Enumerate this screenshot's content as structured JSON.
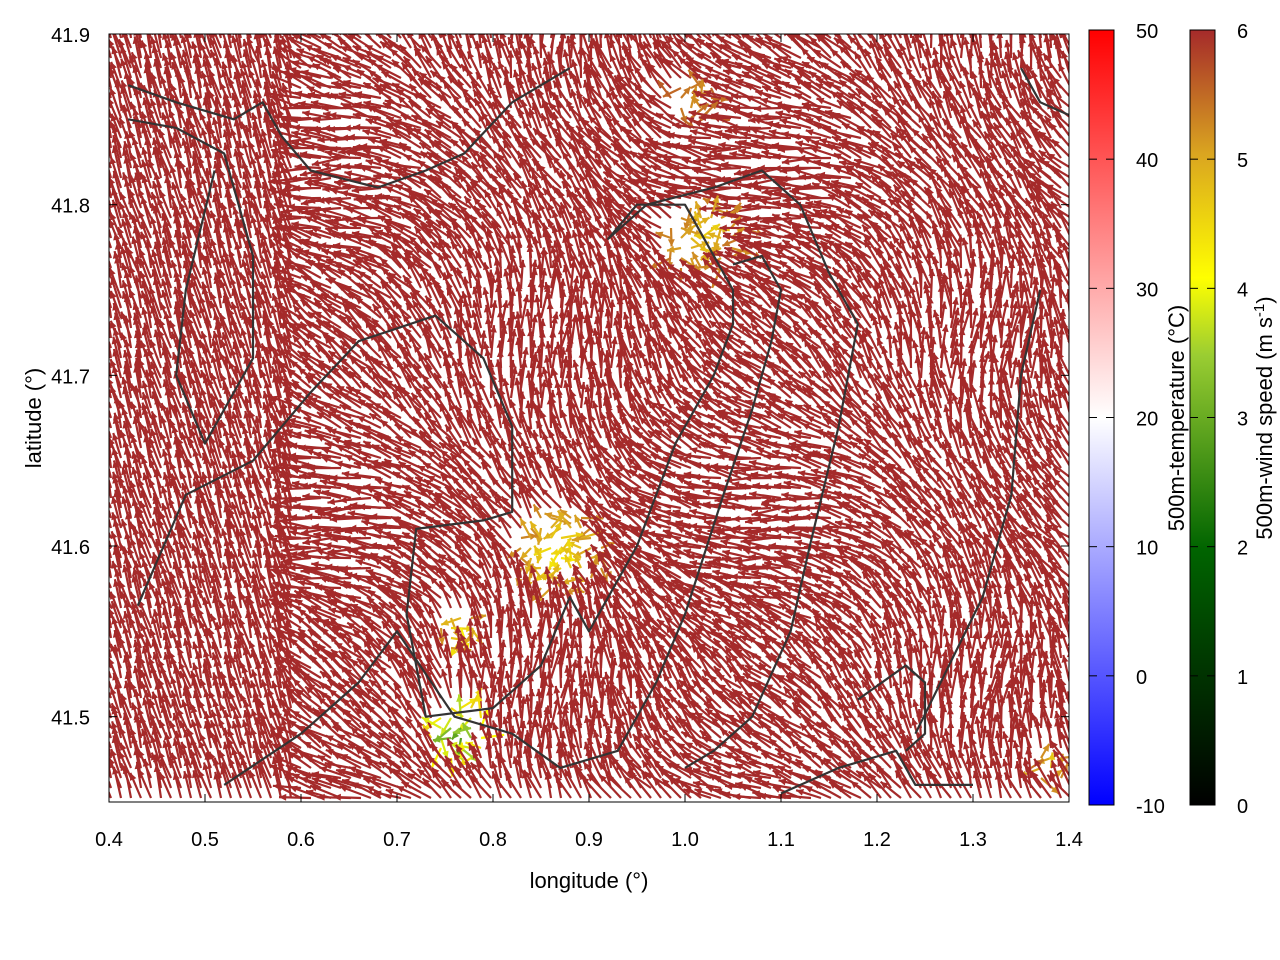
{
  "chart_data": {
    "type": "vector-field",
    "xlabel": "longitude (°)",
    "ylabel": "latitude (°)",
    "xlim": [
      0.4,
      1.4
    ],
    "ylim": [
      41.45,
      41.9
    ],
    "xticks": [
      "0.4",
      "0.5",
      "0.6",
      "0.7",
      "0.8",
      "0.9",
      "1.0",
      "1.1",
      "1.2",
      "1.3",
      "1.4"
    ],
    "xtick_values": [
      0.4,
      0.5,
      0.6,
      0.7,
      0.8,
      0.9,
      1.0,
      1.1,
      1.2,
      1.3,
      1.4
    ],
    "yticks": [
      "41.5",
      "41.6",
      "41.7",
      "41.8",
      "41.9"
    ],
    "ytick_values": [
      41.5,
      41.6,
      41.7,
      41.8,
      41.9
    ],
    "grid": false,
    "arrow_color_dominant": "#a52a2a",
    "contour_color": "#333333",
    "temperature_colorbar": {
      "label": "500m-temperature (°C)",
      "range": [
        -10,
        50
      ],
      "ticks": [
        "-10",
        "0",
        "10",
        "20",
        "30",
        "40",
        "50"
      ],
      "tick_values": [
        -10,
        0,
        10,
        20,
        30,
        40,
        50
      ],
      "colors": [
        "#0000ff",
        "#ffffff",
        "#ff0000"
      ]
    },
    "wind_colorbar": {
      "label": "500m-wind speed (m s",
      "label_sup": "-1",
      "label_end": ")",
      "range": [
        0,
        6
      ],
      "ticks": [
        "0",
        "1",
        "2",
        "3",
        "4",
        "5",
        "6"
      ],
      "tick_values": [
        0,
        1,
        2,
        3,
        4,
        5,
        6
      ],
      "colors": [
        "#000000",
        "#006400",
        "#ffff00",
        "#daa520",
        "#a52a2a"
      ]
    },
    "low_wind_zones": [
      {
        "lon": 1.02,
        "lat": 41.78,
        "speed": 4.5,
        "radius": 0.04
      },
      {
        "lon": 1.01,
        "lat": 41.86,
        "speed": 5.0,
        "radius": 0.025
      },
      {
        "lon": 0.87,
        "lat": 41.595,
        "speed": 4.2,
        "radius": 0.045
      },
      {
        "lon": 0.765,
        "lat": 41.49,
        "speed": 2.5,
        "radius": 0.03
      },
      {
        "lon": 0.765,
        "lat": 41.55,
        "speed": 4.0,
        "radius": 0.02
      },
      {
        "lon": 1.38,
        "lat": 41.47,
        "speed": 4.6,
        "radius": 0.02
      }
    ],
    "contours": [
      [
        [
          0.42,
          41.87
        ],
        [
          0.47,
          41.86
        ],
        [
          0.53,
          41.85
        ],
        [
          0.56,
          41.86
        ],
        [
          0.58,
          41.84
        ],
        [
          0.61,
          41.82
        ],
        [
          0.68,
          41.81
        ],
        [
          0.73,
          41.82
        ],
        [
          0.77,
          41.83
        ],
        [
          0.82,
          41.86
        ],
        [
          0.88,
          41.88
        ]
      ],
      [
        [
          0.42,
          41.85
        ],
        [
          0.47,
          41.845
        ],
        [
          0.52,
          41.83
        ],
        [
          0.55,
          41.77
        ],
        [
          0.55,
          41.71
        ],
        [
          0.5,
          41.66
        ],
        [
          0.47,
          41.7
        ],
        [
          0.48,
          41.75
        ],
        [
          0.51,
          41.82
        ]
      ],
      [
        [
          0.43,
          41.565
        ],
        [
          0.48,
          41.63
        ],
        [
          0.55,
          41.65
        ],
        [
          0.61,
          41.69
        ],
        [
          0.66,
          41.72
        ],
        [
          0.74,
          41.735
        ],
        [
          0.79,
          41.71
        ],
        [
          0.82,
          41.67
        ],
        [
          0.82,
          41.62
        ],
        [
          0.79,
          41.615
        ],
        [
          0.72,
          41.61
        ],
        [
          0.71,
          41.56
        ],
        [
          0.73,
          41.5
        ],
        [
          0.8,
          41.505
        ],
        [
          0.85,
          41.53
        ],
        [
          0.88,
          41.57
        ],
        [
          0.9,
          41.55
        ],
        [
          0.95,
          41.6
        ],
        [
          0.99,
          41.66
        ],
        [
          1.03,
          41.7
        ],
        [
          1.05,
          41.73
        ],
        [
          1.05,
          41.75
        ],
        [
          1.0,
          41.8
        ],
        [
          0.95,
          41.8
        ],
        [
          0.92,
          41.78
        ],
        [
          0.96,
          41.8
        ],
        [
          1.03,
          41.81
        ],
        [
          1.08,
          41.82
        ],
        [
          1.12,
          41.8
        ],
        [
          1.15,
          41.76
        ],
        [
          1.18,
          41.73
        ],
        [
          1.16,
          41.67
        ],
        [
          1.13,
          41.6
        ],
        [
          1.11,
          41.55
        ],
        [
          1.07,
          41.5
        ],
        [
          1.03,
          41.48
        ],
        [
          1.0,
          41.47
        ]
      ],
      [
        [
          0.52,
          41.46
        ],
        [
          0.6,
          41.49
        ],
        [
          0.66,
          41.52
        ],
        [
          0.7,
          41.55
        ],
        [
          0.76,
          41.5
        ],
        [
          0.82,
          41.49
        ],
        [
          0.87,
          41.47
        ],
        [
          0.93,
          41.48
        ],
        [
          0.97,
          41.52
        ],
        [
          1.0,
          41.56
        ],
        [
          1.04,
          41.63
        ],
        [
          1.07,
          41.68
        ],
        [
          1.09,
          41.72
        ],
        [
          1.1,
          41.75
        ],
        [
          1.08,
          41.77
        ],
        [
          1.05,
          41.765
        ]
      ],
      [
        [
          1.1,
          41.455
        ],
        [
          1.16,
          41.47
        ],
        [
          1.22,
          41.48
        ],
        [
          1.24,
          41.46
        ],
        [
          1.3,
          41.46
        ]
      ],
      [
        [
          1.18,
          41.51
        ],
        [
          1.23,
          41.53
        ],
        [
          1.25,
          41.52
        ],
        [
          1.25,
          41.49
        ],
        [
          1.23,
          41.48
        ]
      ],
      [
        [
          1.24,
          41.49
        ],
        [
          1.31,
          41.57
        ],
        [
          1.34,
          41.63
        ],
        [
          1.35,
          41.7
        ],
        [
          1.37,
          41.75
        ]
      ],
      [
        [
          1.35,
          41.88
        ],
        [
          1.37,
          41.86
        ],
        [
          1.41,
          41.85
        ]
      ]
    ]
  }
}
